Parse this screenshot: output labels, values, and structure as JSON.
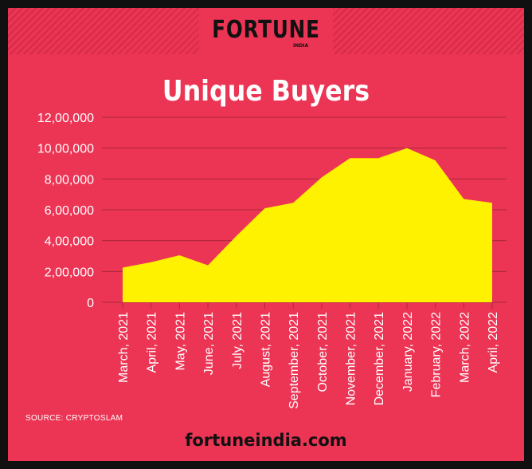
{
  "brand": {
    "logo": "FORTUNE",
    "logo_sub": "INDIA",
    "footer": "fortuneindia.com"
  },
  "source": "SOURCE: CRYPTOSLAM",
  "colors": {
    "background": "#ec3454",
    "area_fill": "#fff200",
    "text": "#ffffff",
    "border": "#101010"
  },
  "chart_data": {
    "type": "area",
    "title": "Unique Buyers",
    "xlabel": "",
    "ylabel": "",
    "categories": [
      "March, 2021",
      "April, 2021",
      "May, 2021",
      "June, 2021",
      "July, 2021",
      "August, 2021",
      "September, 2021",
      "October, 2021",
      "November, 2021",
      "December, 2021",
      "January, 2022",
      "February, 2022",
      "March, 2022",
      "April, 2022"
    ],
    "series": [
      {
        "values": [
          225000,
          260000,
          305000,
          240000,
          430000,
          610000,
          645000,
          810000,
          935000,
          935000,
          1000000,
          920000,
          670000,
          645000
        ]
      }
    ],
    "ylim": [
      0,
      1200000
    ],
    "yticks": [
      0,
      200000,
      400000,
      600000,
      800000,
      1000000,
      1200000
    ],
    "ytick_labels": [
      "0",
      "2,00,000",
      "4,00,000",
      "6,00,000",
      "8,00,000",
      "10,00,000",
      "12,00,000"
    ],
    "grid": true,
    "legend": "none"
  }
}
